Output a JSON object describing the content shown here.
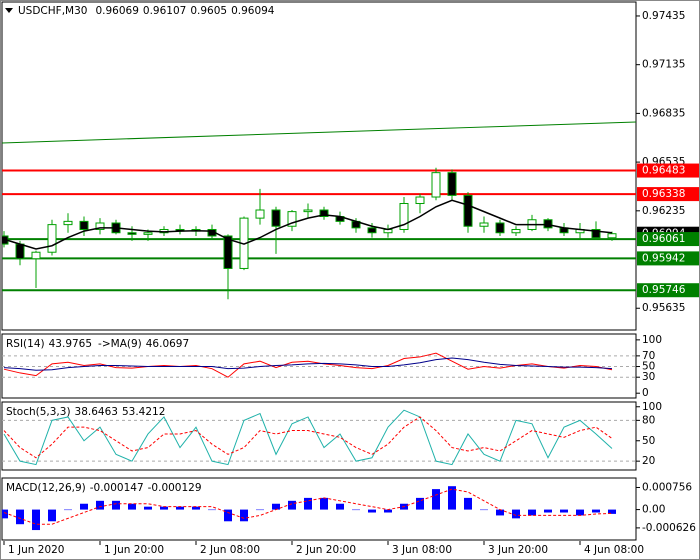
{
  "chart_data": [
    {
      "type": "candlestick",
      "symbol": "USDCHF,M30",
      "x": [
        8,
        10,
        12,
        14,
        16,
        18,
        20,
        22,
        24,
        26,
        28,
        30,
        32,
        34,
        36,
        38,
        40,
        42,
        44,
        46,
        48,
        50,
        52,
        54,
        56,
        58,
        60,
        62,
        64,
        66,
        68,
        70,
        72,
        74,
        76,
        78,
        80,
        82,
        84
      ],
      "open": [
        0.9608,
        0.9603,
        0.9594,
        0.9598,
        0.9615,
        0.9617,
        0.9612,
        0.9616,
        0.961,
        0.9609,
        0.961,
        0.9612,
        0.9611,
        0.9612,
        0.9608,
        0.9588,
        0.9619,
        0.9624,
        0.9614,
        0.9623,
        0.9624,
        0.962,
        0.9617,
        0.9613,
        0.961,
        0.9612,
        0.9628,
        0.9632,
        0.9647,
        0.9633,
        0.9614,
        0.9616,
        0.961,
        0.9612,
        0.9618,
        0.9613,
        0.961,
        0.9612,
        0.96069
      ],
      "high": [
        0.9611,
        0.9605,
        0.9599,
        0.9618,
        0.9622,
        0.962,
        0.9619,
        0.9618,
        0.9614,
        0.9612,
        0.9614,
        0.9615,
        0.9614,
        0.9615,
        0.9609,
        0.962,
        0.9637,
        0.9626,
        0.9624,
        0.9628,
        0.9626,
        0.9623,
        0.9619,
        0.9616,
        0.9615,
        0.9632,
        0.9634,
        0.965,
        0.9649,
        0.9635,
        0.962,
        0.9618,
        0.9614,
        0.9621,
        0.9619,
        0.9616,
        0.9616,
        0.9617,
        0.96107
      ],
      "low": [
        0.9601,
        0.959,
        0.9576,
        0.9596,
        0.961,
        0.9608,
        0.9609,
        0.9609,
        0.9605,
        0.9605,
        0.9608,
        0.9609,
        0.9608,
        0.9606,
        0.9569,
        0.9587,
        0.9615,
        0.9597,
        0.9611,
        0.9619,
        0.9618,
        0.9615,
        0.961,
        0.9607,
        0.9607,
        0.961,
        0.9622,
        0.963,
        0.963,
        0.961,
        0.961,
        0.9608,
        0.9608,
        0.9611,
        0.9611,
        0.9608,
        0.9606,
        0.9606,
        0.9605
      ],
      "close": [
        0.9603,
        0.9594,
        0.9598,
        0.9615,
        0.9617,
        0.9612,
        0.9616,
        0.961,
        0.9609,
        0.961,
        0.9612,
        0.9611,
        0.9612,
        0.9608,
        0.9588,
        0.9619,
        0.9624,
        0.9614,
        0.9623,
        0.9624,
        0.962,
        0.9617,
        0.9613,
        0.961,
        0.9612,
        0.9628,
        0.9632,
        0.9647,
        0.9633,
        0.9614,
        0.9616,
        0.961,
        0.9612,
        0.9618,
        0.9613,
        0.961,
        0.9612,
        0.96069,
        0.96094
      ],
      "up_color": "#00a000",
      "down_color": "#000000",
      "ma": {
        "color": "#000000",
        "values": [
          0.9606,
          0.9603,
          0.96,
          0.9602,
          0.9607,
          0.9611,
          0.9613,
          0.9613,
          0.9612,
          0.9611,
          0.96105,
          0.9611,
          0.96112,
          0.9611,
          0.9606,
          0.9603,
          0.9607,
          0.9612,
          0.9616,
          0.9619,
          0.9621,
          0.962,
          0.9617,
          0.9614,
          0.9612,
          0.9615,
          0.962,
          0.9626,
          0.963,
          0.9627,
          0.9623,
          0.9619,
          0.9615,
          0.9615,
          0.9615,
          0.9613,
          0.9612,
          0.9611,
          0.961
        ]
      },
      "trendline": {
        "color": "#008000",
        "x": [
          7.75,
          87
        ],
        "values": [
          0.96653,
          0.96782
        ]
      },
      "levels": [
        {
          "value": 0.96483,
          "color": "#ff0000"
        },
        {
          "value": 0.96338,
          "color": "#ff0000"
        },
        {
          "value": 0.96061,
          "color": "#008000"
        },
        {
          "value": 0.95942,
          "color": "#008000"
        },
        {
          "value": 0.95746,
          "color": "#008000"
        }
      ],
      "xlim": [
        7.75,
        87
      ],
      "xticks": [
        {
          "value": 8,
          "label": "1 Jun 2020"
        },
        {
          "value": 20,
          "label": "1 Jun 20:00"
        },
        {
          "value": 32,
          "label": "2 Jun 08:00"
        },
        {
          "value": 44,
          "label": "2 Jun 20:00"
        },
        {
          "value": 56,
          "label": "3 Jun 08:00"
        },
        {
          "value": 68,
          "label": "3 Jun 20:00"
        },
        {
          "value": 80,
          "label": "4 Jun 08:00"
        }
      ],
      "ylim": [
        0.95501,
        0.97521
      ],
      "yticks": [
        0.97435,
        0.97135,
        0.96835,
        0.96535,
        0.96235,
        0.95635
      ]
    },
    {
      "type": "line",
      "series": [
        {
          "name": "RSI(14)",
          "color": "#ff0000",
          "values": [
            45,
            38,
            33,
            55,
            58,
            52,
            55,
            48,
            47,
            50,
            52,
            50,
            52,
            46,
            30,
            55,
            60,
            48,
            58,
            60,
            55,
            52,
            48,
            46,
            52,
            65,
            68,
            75,
            60,
            45,
            50,
            47,
            52,
            55,
            50,
            47,
            52,
            50,
            43.9765
          ]
        },
        {
          "name": "->MA(9)",
          "color": "#00008b",
          "values": [
            48,
            46,
            43,
            44,
            48,
            50,
            52,
            52,
            51,
            50,
            50,
            50,
            50,
            50,
            46,
            47,
            50,
            52,
            53,
            55,
            56,
            55,
            53,
            50,
            50,
            53,
            57,
            63,
            66,
            63,
            58,
            54,
            52,
            51,
            50,
            49,
            49,
            48,
            46.0697
          ]
        }
      ],
      "ylim": [
        -9,
        111
      ],
      "yticks": [
        100,
        70,
        50,
        30,
        0
      ],
      "levels": [
        70,
        50,
        30
      ]
    },
    {
      "type": "line",
      "title": "Stoch(5,3,3)",
      "series": [
        {
          "color": "#20b2aa",
          "values": [
            60,
            20,
            15,
            80,
            85,
            50,
            70,
            30,
            20,
            60,
            85,
            40,
            70,
            20,
            15,
            80,
            90,
            30,
            75,
            85,
            40,
            60,
            20,
            25,
            70,
            95,
            85,
            20,
            15,
            60,
            30,
            20,
            80,
            75,
            25,
            70,
            80,
            60,
            38.6463
          ]
        },
        {
          "color": "#ff0000",
          "dashed": true,
          "values": [
            65,
            40,
            25,
            45,
            70,
            70,
            65,
            50,
            35,
            40,
            60,
            60,
            65,
            45,
            30,
            40,
            65,
            60,
            65,
            65,
            60,
            55,
            40,
            30,
            45,
            70,
            85,
            65,
            40,
            35,
            40,
            35,
            50,
            65,
            60,
            55,
            65,
            70,
            53.4212
          ]
        }
      ],
      "ylim": [
        7,
        107
      ],
      "yticks": [
        100,
        80,
        50,
        20
      ],
      "levels": [
        80,
        20
      ]
    },
    {
      "type": "macd",
      "title": "MACD(12,26,9)",
      "series": [
        {
          "type": "bar",
          "color": "#0000ff",
          "values": [
            -0.0003,
            -0.0005,
            -0.0007,
            -0.0004,
            0,
            0.0002,
            0.0003,
            0.0003,
            0.0002,
            0.0001,
            0.0001,
            0.0001,
            0.0001,
            0,
            -0.0004,
            -0.0004,
            0,
            0.0002,
            0.0003,
            0.0004,
            0.0004,
            0.0002,
            0,
            -0.0001,
            -0.0001,
            0.0002,
            0.0004,
            0.0007,
            0.0008,
            0.0004,
            0,
            -0.0002,
            -0.0003,
            -0.0002,
            -0.0001,
            -0.0001,
            -0.0002,
            -0.0001,
            -0.000147
          ]
        },
        {
          "color": "#ff0000",
          "dashed": true,
          "values": [
            -0.0001,
            -0.0003,
            -0.0005,
            -0.0005,
            -0.0003,
            -0.0001,
            0.0001,
            0.0002,
            0.0002,
            0.0002,
            0.0001,
            0.0001,
            0.0001,
            0.0001,
            -0.0001,
            -0.0003,
            -0.0002,
            0,
            0.0002,
            0.0003,
            0.0004,
            0.0003,
            0.0002,
            0.0001,
            0,
            0.0001,
            0.0003,
            0.0005,
            0.0007,
            0.0006,
            0.0003,
            0,
            -0.0002,
            -0.0002,
            -0.0002,
            -0.0002,
            -0.0002,
            -0.00015,
            -0.000129
          ]
        }
      ],
      "ylim": [
        -0.00104,
        0.00108
      ],
      "yticks": [
        0.000756,
        {
          "value": 0,
          "label": "0.00"
        },
        -0.000626
      ]
    }
  ]
}
